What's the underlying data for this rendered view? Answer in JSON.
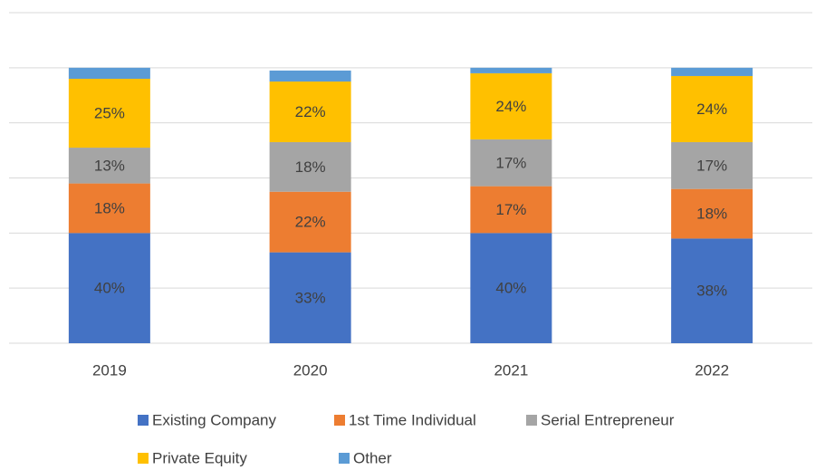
{
  "chart_data": {
    "type": "stacked_bar",
    "categories": [
      "2019",
      "2020",
      "2021",
      "2022"
    ],
    "series": [
      {
        "name": "Existing Company",
        "color": "#4472c4",
        "values": [
          40,
          33,
          40,
          38
        ],
        "value_labels": [
          "40%",
          "33%",
          "40%",
          "38%"
        ]
      },
      {
        "name": "1st Time Individual",
        "color": "#ed7d31",
        "values": [
          18,
          22,
          17,
          18
        ],
        "value_labels": [
          "18%",
          "22%",
          "17%",
          "18%"
        ]
      },
      {
        "name": "Serial Entrepreneur",
        "color": "#a5a5a5",
        "values": [
          13,
          18,
          17,
          17
        ],
        "value_labels": [
          "13%",
          "18%",
          "17%",
          "17%"
        ]
      },
      {
        "name": "Private Equity",
        "color": "#ffc000",
        "values": [
          25,
          22,
          24,
          24
        ],
        "value_labels": [
          "25%",
          "22%",
          "24%",
          "24%"
        ]
      },
      {
        "name": "Other",
        "color": "#5b9bd5",
        "values": [
          4,
          4,
          2,
          3
        ]
      }
    ],
    "ylim": [
      0,
      120
    ],
    "yticks": [
      0,
      20,
      40,
      60,
      80,
      100,
      120
    ],
    "grid": true,
    "legend": "bottom"
  }
}
